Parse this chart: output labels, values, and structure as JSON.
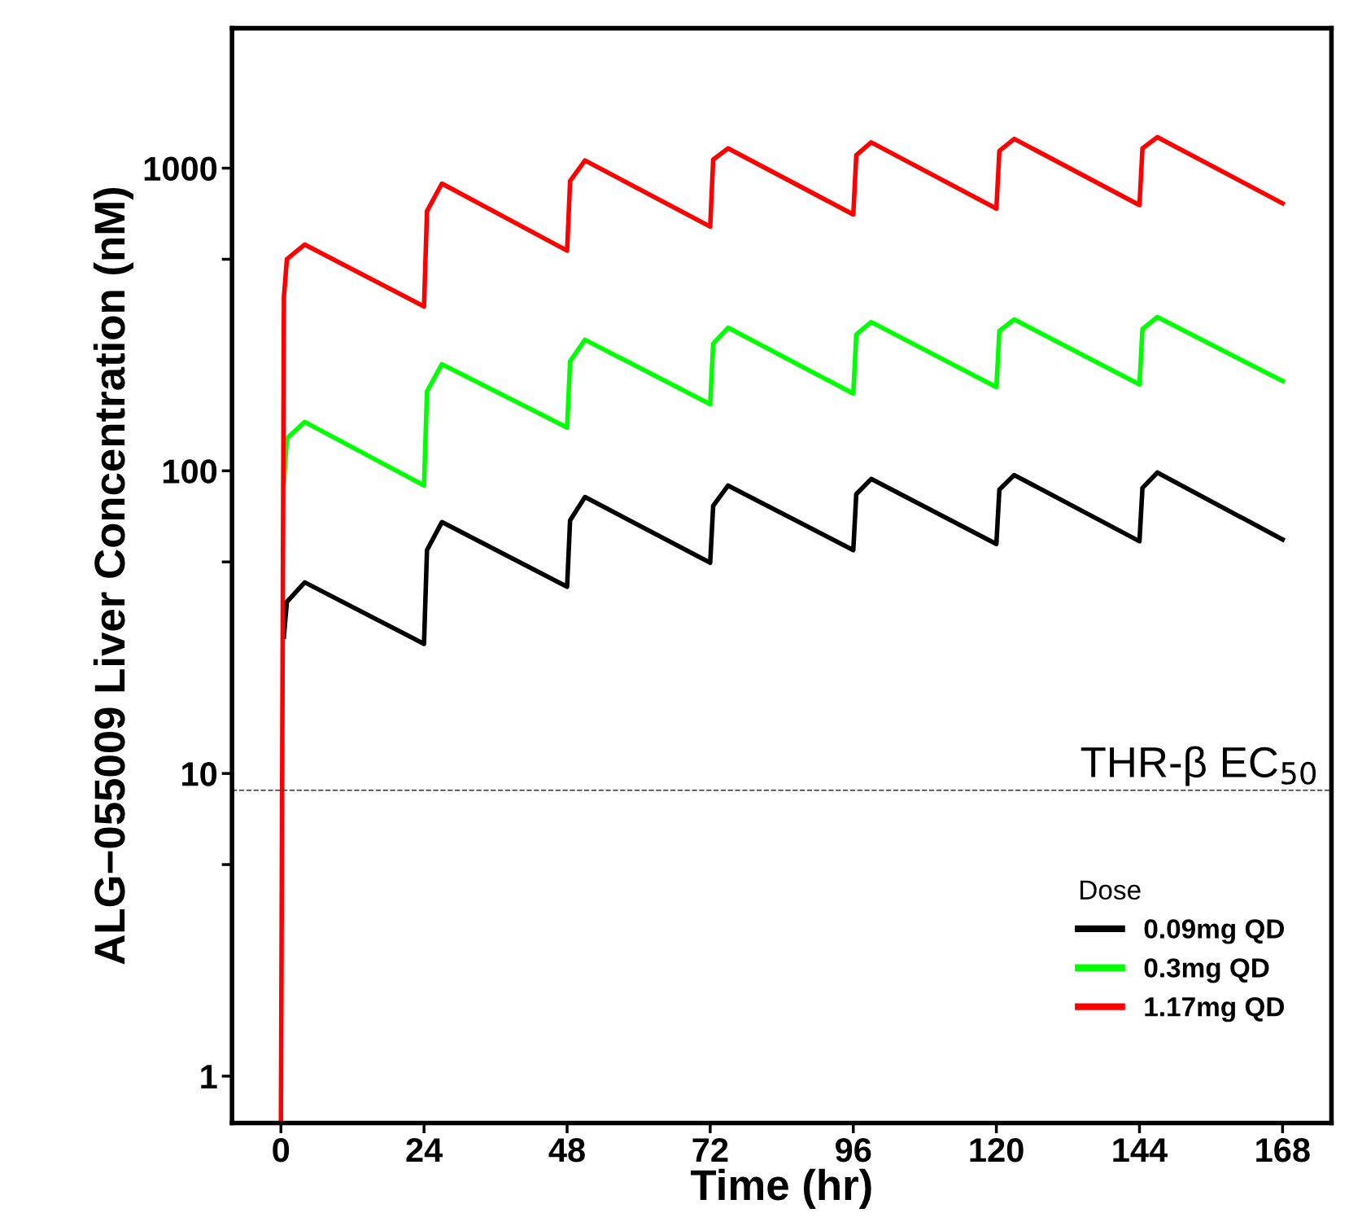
{
  "chart_data": {
    "type": "line",
    "xlabel": "Time (hr)",
    "ylabel": "ALG−055009 Liver Concentration (nM)",
    "legend_title": "Dose",
    "legend": "bottom right",
    "log": "y",
    "grid": false,
    "marker": "none",
    "line_style": "solid",
    "xlim": [
      -8.2,
      176.2
    ],
    "xticks": [
      0,
      24,
      48,
      72,
      96,
      120,
      144,
      168
    ],
    "ylim": [
      0.7,
      2900
    ],
    "yticks": [
      1,
      {
        "value": 5,
        "label": null
      },
      10,
      {
        "value": 50,
        "label": null
      },
      100,
      {
        "value": 500,
        "label": null
      },
      1000
    ],
    "ref_lines": [
      {
        "axis": "y",
        "value": 8.8,
        "label": "THR-β EC$_{50}$",
        "color": "#333333",
        "line_style": "dashed"
      }
    ],
    "series": [
      {
        "name": "0.09mg QD",
        "color": "#000000",
        "x": [
          0.5,
          1,
          4,
          24,
          24.5,
          27,
          48,
          48.5,
          51,
          72,
          72.5,
          75,
          96,
          96.5,
          99,
          120,
          120.5,
          123,
          144,
          144.5,
          147,
          168
        ],
        "values": [
          28.3,
          36.9,
          42.8,
          26.8,
          54.7,
          67.7,
          41.4,
          68.6,
          81.9,
          49.7,
          76.6,
          89.4,
          54.7,
          83.7,
          94,
          57.3,
          86.6,
          96.8,
          58.5,
          87.8,
          98.7,
          59.3
        ]
      },
      {
        "name": "0.3mg QD",
        "color": "#00ff00",
        "x": [
          0.5,
          1,
          4,
          24,
          24.5,
          27,
          48,
          48.5,
          51,
          72,
          72.5,
          75,
          96,
          96.5,
          99,
          120,
          120.5,
          123,
          144,
          144.5,
          147,
          168
        ],
        "values": [
          92,
          128,
          145,
          89.5,
          183,
          225,
          139,
          230,
          271,
          166,
          263,
          297,
          180,
          282,
          310,
          189,
          290,
          316,
          193,
          294,
          322,
          198
        ]
      },
      {
        "name": "1.17mg QD",
        "color": "#ff0000",
        "x": [
          0,
          0.5,
          1,
          4,
          24,
          24.5,
          27,
          48,
          48.5,
          51,
          72,
          72.5,
          75,
          96,
          96.5,
          99,
          120,
          120.5,
          123,
          144,
          144.5,
          147,
          168
        ],
        "values": [
          0.7,
          375,
          500,
          559,
          349,
          721,
          889,
          534,
          906,
          1060,
          641,
          1068,
          1162,
          703,
          1103,
          1217,
          735,
          1140,
          1249,
          755,
          1162,
          1266,
          765
        ]
      }
    ]
  }
}
